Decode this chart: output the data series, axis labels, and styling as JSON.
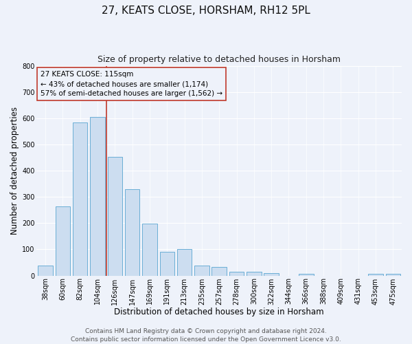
{
  "title": "27, KEATS CLOSE, HORSHAM, RH12 5PL",
  "subtitle": "Size of property relative to detached houses in Horsham",
  "xlabel": "Distribution of detached houses by size in Horsham",
  "ylabel": "Number of detached properties",
  "categories": [
    "38sqm",
    "60sqm",
    "82sqm",
    "104sqm",
    "126sqm",
    "147sqm",
    "169sqm",
    "191sqm",
    "213sqm",
    "235sqm",
    "257sqm",
    "278sqm",
    "300sqm",
    "322sqm",
    "344sqm",
    "366sqm",
    "388sqm",
    "409sqm",
    "431sqm",
    "453sqm",
    "475sqm"
  ],
  "values": [
    38,
    265,
    585,
    605,
    453,
    330,
    197,
    91,
    101,
    38,
    32,
    15,
    15,
    10,
    0,
    7,
    0,
    0,
    0,
    7,
    7
  ],
  "bar_color": "#ccddf0",
  "bar_edge_color": "#6aaed6",
  "bar_width": 0.85,
  "vline_color": "#c0392b",
  "annotation_box_text": "27 KEATS CLOSE: 115sqm\n← 43% of detached houses are smaller (1,174)\n57% of semi-detached houses are larger (1,562) →",
  "annotation_box_color": "#c0392b",
  "ylim": [
    0,
    800
  ],
  "yticks": [
    0,
    100,
    200,
    300,
    400,
    500,
    600,
    700,
    800
  ],
  "background_color": "#eef2fa",
  "grid_color": "#ffffff",
  "footer_line1": "Contains HM Land Registry data © Crown copyright and database right 2024.",
  "footer_line2": "Contains public sector information licensed under the Open Government Licence v3.0.",
  "title_fontsize": 11,
  "subtitle_fontsize": 9,
  "axis_label_fontsize": 8.5,
  "tick_fontsize": 7,
  "annotation_fontsize": 7.5,
  "footer_fontsize": 6.5
}
